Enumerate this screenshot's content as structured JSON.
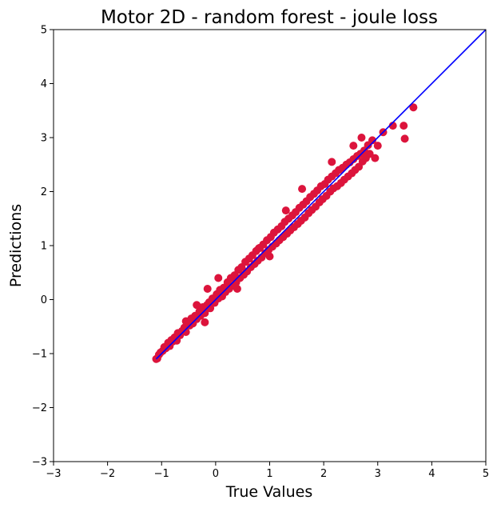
{
  "chart_data": {
    "type": "scatter",
    "title": "Motor 2D - random forest - joule loss",
    "xlabel": "True Values",
    "ylabel": "Predictions",
    "xlim": [
      -3,
      5
    ],
    "ylim": [
      -3,
      5
    ],
    "xticks": [
      "−3",
      "−2",
      "−1",
      "0",
      "1",
      "2",
      "3",
      "4",
      "5"
    ],
    "yticks": [
      "−3",
      "−2",
      "−1",
      "0",
      "1",
      "2",
      "3",
      "4",
      "5"
    ],
    "grid": false,
    "legend": "none",
    "point_color": "#dc143c",
    "line_color": "#0000ff",
    "reference_line": {
      "name": "",
      "x": [
        -1.1,
        5
      ],
      "y": [
        -1.1,
        5
      ]
    },
    "series": [
      {
        "name": "",
        "points": [
          [
            -1.1,
            -1.1
          ],
          [
            -1.08,
            -1.09
          ],
          [
            -1.05,
            -1.02
          ],
          [
            -1.02,
            -0.98
          ],
          [
            -0.98,
            -0.95
          ],
          [
            -0.95,
            -0.88
          ],
          [
            -0.92,
            -0.9
          ],
          [
            -0.88,
            -0.8
          ],
          [
            -0.85,
            -0.86
          ],
          [
            -0.82,
            -0.75
          ],
          [
            -0.8,
            -0.78
          ],
          [
            -0.76,
            -0.7
          ],
          [
            -0.72,
            -0.76
          ],
          [
            -0.7,
            -0.62
          ],
          [
            -0.66,
            -0.66
          ],
          [
            -0.62,
            -0.58
          ],
          [
            -0.58,
            -0.52
          ],
          [
            -0.55,
            -0.6
          ],
          [
            -0.52,
            -0.45
          ],
          [
            -0.48,
            -0.48
          ],
          [
            -0.45,
            -0.35
          ],
          [
            -0.42,
            -0.44
          ],
          [
            -0.38,
            -0.3
          ],
          [
            -0.35,
            -0.36
          ],
          [
            -0.3,
            -0.22
          ],
          [
            -0.28,
            -0.3
          ],
          [
            -0.24,
            -0.14
          ],
          [
            -0.2,
            -0.25
          ],
          [
            -0.16,
            -0.1
          ],
          [
            -0.12,
            -0.05
          ],
          [
            -0.1,
            -0.16
          ],
          [
            -0.06,
            0.02
          ],
          [
            -0.02,
            -0.06
          ],
          [
            0.02,
            0.1
          ],
          [
            0.05,
            0.02
          ],
          [
            0.08,
            0.18
          ],
          [
            0.12,
            0.06
          ],
          [
            0.15,
            0.22
          ],
          [
            0.18,
            0.14
          ],
          [
            0.22,
            0.32
          ],
          [
            0.25,
            0.2
          ],
          [
            0.28,
            0.4
          ],
          [
            0.32,
            0.26
          ],
          [
            0.35,
            0.45
          ],
          [
            0.38,
            0.32
          ],
          [
            0.42,
            0.55
          ],
          [
            0.45,
            0.4
          ],
          [
            0.48,
            0.6
          ],
          [
            0.52,
            0.46
          ],
          [
            0.55,
            0.7
          ],
          [
            0.58,
            0.52
          ],
          [
            0.62,
            0.76
          ],
          [
            0.65,
            0.6
          ],
          [
            0.68,
            0.82
          ],
          [
            0.72,
            0.66
          ],
          [
            0.75,
            0.9
          ],
          [
            0.78,
            0.72
          ],
          [
            0.82,
            0.96
          ],
          [
            0.85,
            0.78
          ],
          [
            0.88,
            1.02
          ],
          [
            0.92,
            0.86
          ],
          [
            0.95,
            1.1
          ],
          [
            0.98,
            0.92
          ],
          [
            1.02,
            1.16
          ],
          [
            1.05,
            0.98
          ],
          [
            1.08,
            1.24
          ],
          [
            1.12,
            1.04
          ],
          [
            1.15,
            1.3
          ],
          [
            1.18,
            1.1
          ],
          [
            1.22,
            1.36
          ],
          [
            1.25,
            1.16
          ],
          [
            1.28,
            1.44
          ],
          [
            1.32,
            1.22
          ],
          [
            1.35,
            1.5
          ],
          [
            1.38,
            1.28
          ],
          [
            1.42,
            1.56
          ],
          [
            1.45,
            1.34
          ],
          [
            1.48,
            1.62
          ],
          [
            1.52,
            1.4
          ],
          [
            1.55,
            1.7
          ],
          [
            1.58,
            1.46
          ],
          [
            1.62,
            1.76
          ],
          [
            1.65,
            1.52
          ],
          [
            1.68,
            1.82
          ],
          [
            1.72,
            1.6
          ],
          [
            1.75,
            1.9
          ],
          [
            1.78,
            1.66
          ],
          [
            1.82,
            1.96
          ],
          [
            1.85,
            1.72
          ],
          [
            1.88,
            2.02
          ],
          [
            1.92,
            1.8
          ],
          [
            1.95,
            2.1
          ],
          [
            1.98,
            1.86
          ],
          [
            2.02,
            2.14
          ],
          [
            2.05,
            1.92
          ],
          [
            2.08,
            2.22
          ],
          [
            2.12,
            2.0
          ],
          [
            2.15,
            2.28
          ],
          [
            2.18,
            2.06
          ],
          [
            2.22,
            2.34
          ],
          [
            2.25,
            2.1
          ],
          [
            2.28,
            2.4
          ],
          [
            2.32,
            2.16
          ],
          [
            2.35,
            2.44
          ],
          [
            2.38,
            2.22
          ],
          [
            2.42,
            2.5
          ],
          [
            2.45,
            2.28
          ],
          [
            2.48,
            2.54
          ],
          [
            2.52,
            2.34
          ],
          [
            2.55,
            2.6
          ],
          [
            2.58,
            2.4
          ],
          [
            2.62,
            2.66
          ],
          [
            2.65,
            2.46
          ],
          [
            2.68,
            2.7
          ],
          [
            2.72,
            2.56
          ],
          [
            2.75,
            2.76
          ],
          [
            2.78,
            2.62
          ],
          [
            2.82,
            2.86
          ],
          [
            2.85,
            2.7
          ],
          [
            2.9,
            2.95
          ],
          [
            2.95,
            2.62
          ],
          [
            3.0,
            2.85
          ],
          [
            3.1,
            3.1
          ],
          [
            3.28,
            3.22
          ],
          [
            3.48,
            3.22
          ],
          [
            3.5,
            2.98
          ],
          [
            3.66,
            3.56
          ],
          [
            2.7,
            3.0
          ],
          [
            2.55,
            2.85
          ],
          [
            0.8,
            0.95
          ],
          [
            1.6,
            2.05
          ],
          [
            -0.35,
            -0.1
          ],
          [
            -0.15,
            0.2
          ],
          [
            0.05,
            0.4
          ],
          [
            -0.2,
            -0.42
          ],
          [
            0.4,
            0.2
          ],
          [
            1.0,
            0.8
          ],
          [
            2.15,
            2.55
          ],
          [
            1.3,
            1.65
          ],
          [
            -0.55,
            -0.4
          ]
        ]
      }
    ]
  }
}
